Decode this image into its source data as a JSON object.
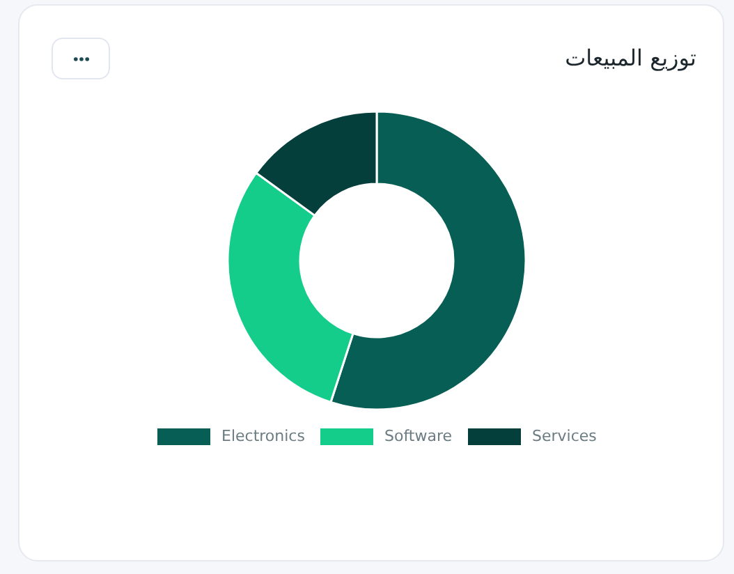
{
  "chart_data": {
    "type": "donut",
    "title": "توزيع المبيعات",
    "categories": [
      "Electronics",
      "Software",
      "Services"
    ],
    "values": [
      55,
      30,
      15
    ],
    "colors": [
      "#075e55",
      "#14cd8a",
      "#053f3c"
    ],
    "legend": "bottom"
  }
}
